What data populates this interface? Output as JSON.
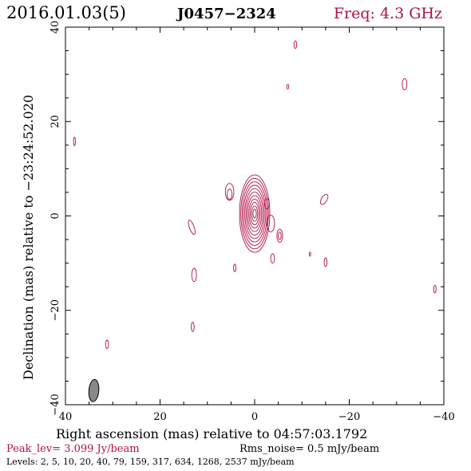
{
  "header": {
    "date": "2016.01.03(5)",
    "source": "J0457−2324",
    "freq": "Freq: 4.3 GHz"
  },
  "colors": {
    "contour": "#b01048",
    "beam_fill": "#888888",
    "frame": "#000000"
  },
  "chart_data": {
    "type": "contour",
    "xlabel": "Right ascension (mas) relative to 04:57:03.1792",
    "ylabel": "Declination (mas) relative to −23:24:52.020",
    "xlim": [
      40,
      -40
    ],
    "ylim": [
      -40,
      40
    ],
    "x_ticks": [
      40,
      20,
      0,
      -20,
      -40
    ],
    "y_ticks": [
      -40,
      -20,
      0,
      20,
      40
    ],
    "x_tick_labels": [
      "40",
      "20",
      "0",
      "−20",
      "−40"
    ],
    "y_tick_labels": [
      "−40",
      "−20",
      "0",
      "20",
      "40"
    ],
    "levels_mJy": [
      2,
      5,
      10,
      20,
      40,
      79,
      159,
      317,
      634,
      1268,
      2537
    ],
    "peak_text": "Peak_lev=  3.099 Jy/beam",
    "rms_text": "Rms_noise=  0.5 mJy/beam",
    "levels_text": "Levels:   2,   5,  10,  20,  40,  79, 159, 317, 634, 1268, 2537 mJy/beam",
    "beam": {
      "x": 34,
      "y": -37,
      "major_mas": 4.7,
      "minor_mas": 2.1,
      "pa_deg": 5
    },
    "core": {
      "x": 0,
      "y": 0.5,
      "rings": 11,
      "outer_rx": 3.2,
      "outer_ry": 8.2,
      "inner_rx": 0.35,
      "inner_ry": 0.9
    },
    "components": [
      {
        "x": 5.3,
        "y": 5.1,
        "rx": 0.9,
        "ry": 1.8,
        "angle": 0
      },
      {
        "x": 5.3,
        "y": 4.6,
        "rx": 0.5,
        "ry": 1.1,
        "angle": 0
      },
      {
        "x": -2.6,
        "y": 2.6,
        "rx": 0.5,
        "ry": 1.1,
        "angle": 0
      },
      {
        "x": -5.3,
        "y": -4.2,
        "rx": 0.6,
        "ry": 1.4,
        "angle": 0
      },
      {
        "x": -5.3,
        "y": -4.2,
        "rx": 0.3,
        "ry": 0.8,
        "angle": 0
      },
      {
        "x": -3.4,
        "y": -1.6,
        "rx": 0.8,
        "ry": 1.8,
        "angle": 0
      },
      {
        "x": -3.8,
        "y": -9.0,
        "rx": 0.4,
        "ry": 1.0,
        "angle": 0
      },
      {
        "x": -14.7,
        "y": 3.5,
        "rx": 0.6,
        "ry": 1.2,
        "angle": 30
      },
      {
        "x": -15.0,
        "y": -9.8,
        "rx": 0.3,
        "ry": 0.9,
        "angle": 0
      },
      {
        "x": -11.7,
        "y": -8.1,
        "rx": 0.15,
        "ry": 0.45,
        "angle": 0
      },
      {
        "x": -8.6,
        "y": 36.3,
        "rx": 0.3,
        "ry": 0.8,
        "angle": 0
      },
      {
        "x": -7.0,
        "y": 27.4,
        "rx": 0.2,
        "ry": 0.5,
        "angle": 0
      },
      {
        "x": -31.7,
        "y": 27.9,
        "rx": 0.5,
        "ry": 1.2,
        "angle": 0
      },
      {
        "x": 38.1,
        "y": 15.8,
        "rx": 0.2,
        "ry": 0.9,
        "angle": 0
      },
      {
        "x": 13.3,
        "y": -2.4,
        "rx": 0.5,
        "ry": 1.6,
        "angle": -20
      },
      {
        "x": 4.2,
        "y": -11.0,
        "rx": 0.25,
        "ry": 0.8,
        "angle": 0
      },
      {
        "x": 12.8,
        "y": -12.5,
        "rx": 0.5,
        "ry": 1.4,
        "angle": 0
      },
      {
        "x": 13.1,
        "y": -23.5,
        "rx": 0.3,
        "ry": 1.0,
        "angle": 0
      },
      {
        "x": 31.2,
        "y": -27.2,
        "rx": 0.3,
        "ry": 0.9,
        "angle": 0
      },
      {
        "x": -38.1,
        "y": -15.5,
        "rx": 0.25,
        "ry": 0.8,
        "angle": 0
      }
    ]
  }
}
